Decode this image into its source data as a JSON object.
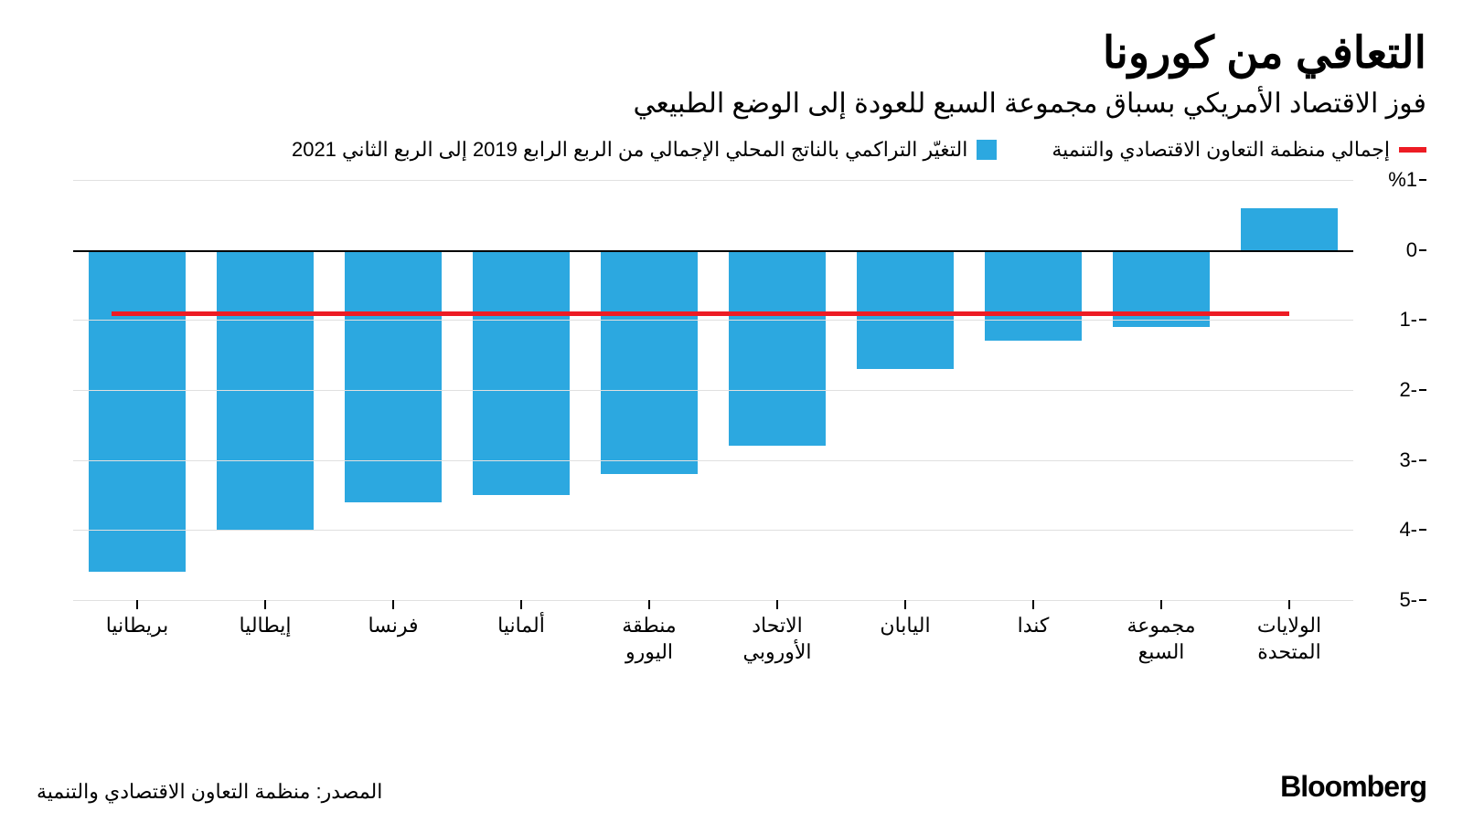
{
  "title": "التعافي من كورونا",
  "subtitle": "فوز الاقتصاد الأمريكي بسباق مجموعة السبع للعودة إلى الوضع الطبيعي",
  "legend": {
    "ref_label": "إجمالي منظمة التعاون الاقتصادي والتنمية",
    "ref_color": "#ed1c24",
    "bar_label": "التغيّر التراكمي بالناتج المحلي الإجمالي من الربع الرابع 2019 إلى الربع الثاني 2021",
    "bar_color": "#2ca8e0"
  },
  "chart": {
    "type": "bar",
    "y_min": -5,
    "y_max": 1,
    "y_ticks": [
      {
        "v": 1,
        "label": "%1"
      },
      {
        "v": 0,
        "label": "0"
      },
      {
        "v": -1,
        "label": "1-"
      },
      {
        "v": -2,
        "label": "2-"
      },
      {
        "v": -3,
        "label": "3-"
      },
      {
        "v": -4,
        "label": "4-"
      },
      {
        "v": -5,
        "label": "5-"
      }
    ],
    "reference_value": -0.9,
    "reference_color": "#ed1c24",
    "reference_width": 5,
    "grid_color": "#e0e0e0",
    "zero_color": "#000000",
    "categories": [
      {
        "label": "الولايات\nالمتحدة",
        "value": 0.6
      },
      {
        "label": "مجموعة\nالسبع",
        "value": -1.1
      },
      {
        "label": "كندا",
        "value": -1.3
      },
      {
        "label": "اليابان",
        "value": -1.7
      },
      {
        "label": "الاتحاد\nالأوروبي",
        "value": -2.8
      },
      {
        "label": "منطقة\nاليورو",
        "value": -3.2
      },
      {
        "label": "ألمانيا",
        "value": -3.5
      },
      {
        "label": "فرنسا",
        "value": -3.6
      },
      {
        "label": "إيطاليا",
        "value": -4.0
      },
      {
        "label": "بريطانيا",
        "value": -4.6
      }
    ],
    "bar_color": "#2ca8e0",
    "background_color": "#ffffff"
  },
  "source": "المصدر: منظمة التعاون الاقتصادي والتنمية",
  "brand": "Bloomberg"
}
